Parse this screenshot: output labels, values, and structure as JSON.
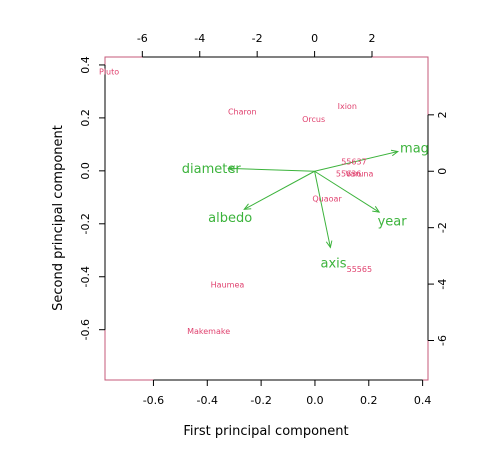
{
  "chart_data": {
    "type": "scatter",
    "subtype": "biplot",
    "title": "",
    "xlabel": "First principal component",
    "ylabel": "Second principal component",
    "xlim": [
      -0.78,
      0.42
    ],
    "ylim": [
      -0.79,
      0.43
    ],
    "xticks": [
      -0.6,
      -0.4,
      -0.2,
      0.0,
      0.2,
      0.4
    ],
    "yticks": [
      -0.6,
      -0.4,
      -0.2,
      0.0,
      0.2,
      0.4
    ],
    "top_axis": {
      "lim": [
        -7.3,
        3.95
      ],
      "ticks": [
        -6,
        -4,
        -2,
        0,
        2
      ]
    },
    "right_axis": {
      "lim": [
        -7.4,
        4.05
      ],
      "ticks": [
        -6,
        -4,
        -2,
        0,
        2
      ]
    },
    "observation_color": "#e0426f",
    "variable_color": "#3cb33c",
    "frame_color": "#c45a78",
    "observations": [
      {
        "label": "Pluto",
        "x": -0.765,
        "y": 0.375
      },
      {
        "label": "Charon",
        "x": -0.27,
        "y": 0.225
      },
      {
        "label": "Ixion",
        "x": 0.12,
        "y": 0.245
      },
      {
        "label": "Orcus",
        "x": -0.005,
        "y": 0.195
      },
      {
        "label": "55637",
        "x": 0.145,
        "y": 0.035
      },
      {
        "label": "55636",
        "x": 0.125,
        "y": -0.01
      },
      {
        "label": "Varuna",
        "x": 0.165,
        "y": -0.01
      },
      {
        "label": "Quaoar",
        "x": 0.045,
        "y": -0.105
      },
      {
        "label": "55565",
        "x": 0.165,
        "y": -0.37
      },
      {
        "label": "Haumea",
        "x": -0.325,
        "y": -0.43
      },
      {
        "label": "Makemake",
        "x": -0.395,
        "y": -0.605
      }
    ],
    "variables": [
      {
        "label": "diameter",
        "x": -3.0,
        "y": 0.1
      },
      {
        "label": "mag",
        "x": 2.9,
        "y": 0.7
      },
      {
        "label": "albedo",
        "x": -2.45,
        "y": -1.35
      },
      {
        "label": "year",
        "x": 2.25,
        "y": -1.45
      },
      {
        "label": "axis",
        "x": 0.55,
        "y": -2.7
      }
    ]
  }
}
